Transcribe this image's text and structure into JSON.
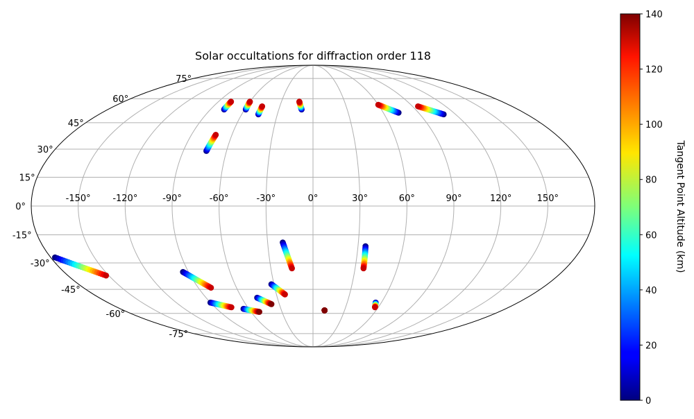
{
  "chart_data": {
    "type": "scatter",
    "projection": "mollweide",
    "title": "Solar occultations for diffraction order 118",
    "longitude_ticks": [
      "-150°",
      "-120°",
      "-90°",
      "-60°",
      "-30°",
      "0°",
      "30°",
      "60°",
      "90°",
      "120°",
      "150°"
    ],
    "latitude_ticks_north": [
      "75°",
      "60°",
      "45°",
      "30°",
      "15°"
    ],
    "latitude_ticks_south": [
      "0°",
      "-15°",
      "-30°",
      "-45°",
      "-60°",
      "-75°"
    ],
    "grid": true,
    "colorbar": {
      "label": "Tangent Point Altitude (km)",
      "colormap": "jet",
      "range": [
        0,
        140
      ],
      "ticks": [
        "0",
        "20",
        "40",
        "60",
        "80",
        "100",
        "120",
        "140"
      ]
    },
    "tracks": [
      {
        "lon_range": [
          -78,
          -78
        ],
        "lat_range": [
          53,
          58
        ],
        "altitude_range": [
          0,
          130
        ]
      },
      {
        "lon_range": [
          -59,
          -60
        ],
        "lat_range": [
          53,
          58
        ],
        "altitude_range": [
          0,
          130
        ]
      },
      {
        "lon_range": [
          -46,
          -46
        ],
        "lat_range": [
          50,
          55
        ],
        "altitude_range": [
          0,
          130
        ]
      },
      {
        "lon_range": [
          -74,
          -72
        ],
        "lat_range": [
          29,
          38
        ],
        "altitude_range": [
          0,
          130
        ]
      },
      {
        "lon_range": [
          -10,
          -13
        ],
        "lat_range": [
          53,
          58
        ],
        "altitude_range": [
          0,
          130
        ]
      },
      {
        "lon_range": [
          73,
          60
        ],
        "lat_range": [
          51,
          56
        ],
        "altitude_range": [
          0,
          130
        ]
      },
      {
        "lon_range": [
          110,
          95
        ],
        "lat_range": [
          50,
          55
        ],
        "altitude_range": [
          0,
          130
        ]
      },
      {
        "lon_range": [
          -177,
          -152
        ],
        "lat_range": [
          -27,
          -37
        ],
        "altitude_range": [
          0,
          130
        ]
      },
      {
        "lon_range": [
          -94,
          -80
        ],
        "lat_range": [
          -35,
          -44
        ],
        "altitude_range": [
          0,
          130
        ]
      },
      {
        "lon_range": [
          -90,
          -75
        ],
        "lat_range": [
          -53,
          -56
        ],
        "altitude_range": [
          0,
          130
        ]
      },
      {
        "lon_range": [
          -65,
          -52
        ],
        "lat_range": [
          -57,
          -59
        ],
        "altitude_range": [
          0,
          140
        ]
      },
      {
        "lon_range": [
          -47,
          -37
        ],
        "lat_range": [
          -50,
          -54
        ],
        "altitude_range": [
          0,
          140
        ]
      },
      {
        "lon_range": [
          -32,
          -23
        ],
        "lat_range": [
          -42,
          -48
        ],
        "altitude_range": [
          0,
          130
        ]
      },
      {
        "lon_range": [
          -20,
          -15
        ],
        "lat_range": [
          -19,
          -33
        ],
        "altitude_range": [
          0,
          130
        ]
      },
      {
        "lon_range": [
          35,
          36
        ],
        "lat_range": [
          -21,
          -33
        ],
        "altitude_range": [
          0,
          130
        ]
      },
      {
        "lon_range": [
          55,
          57
        ],
        "lat_range": [
          -53,
          -56
        ],
        "altitude_range": [
          0,
          130
        ]
      },
      {
        "lon_range": [
          11,
          11
        ],
        "lat_range": [
          -58,
          -58
        ],
        "altitude_range": [
          140,
          140
        ]
      }
    ]
  },
  "colors": {
    "axis_line": "#000000",
    "grid_line": "#b0b0b0",
    "background": "#ffffff"
  }
}
